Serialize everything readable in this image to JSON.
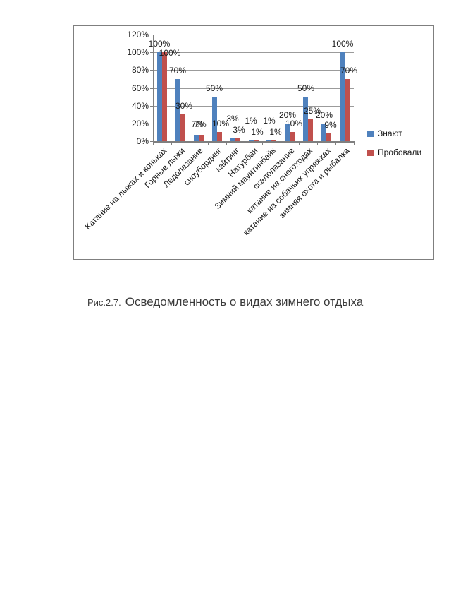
{
  "page": {
    "background": "#ffffff"
  },
  "figure": {
    "caption_prefix": "Рис.2.7.",
    "caption_title": "Осведомленность о видах зимнего отдыха"
  },
  "chart_data": {
    "type": "bar",
    "title": "",
    "xlabel": "",
    "ylabel": "",
    "categories": [
      "Катание на лыжах и коньках",
      "Горные лыжи",
      "Ледолазание",
      "сноубординг",
      "кайтинг",
      "Натурбан",
      "Зимний маунтинбайк",
      "скалолазание",
      "катание на снегоходах",
      "катание на собачьих упряжках",
      "зимняя охота и рыбалка"
    ],
    "series": [
      {
        "name": "Знают",
        "color": "#4f81bd",
        "values": [
          100,
          70,
          7,
          50,
          3,
          1,
          1,
          20,
          50,
          20,
          100
        ],
        "labels": [
          "100%",
          "70%",
          "7%",
          "50%",
          "3%",
          "1%",
          "1%",
          "20%",
          "50%",
          "20%",
          "100%"
        ]
      },
      {
        "name": "Пробовали",
        "color": "#c0504d",
        "values": [
          100,
          30,
          7,
          10,
          3,
          1,
          1,
          10,
          25,
          9,
          70
        ],
        "labels": [
          "100%",
          "30%",
          "7%",
          "10%",
          "3%",
          "1%",
          "1%",
          "10%",
          "25%",
          "9%",
          "70%"
        ]
      }
    ],
    "ylim": [
      0,
      120
    ],
    "ytick_step": 20,
    "ytick_labels": [
      "0%",
      "20%",
      "40%",
      "60%",
      "80%",
      "100%",
      "120%"
    ],
    "grid": true,
    "grid_color": "#9b9b9b",
    "axis_color": "#7f7f7f",
    "legend_position": "right"
  }
}
